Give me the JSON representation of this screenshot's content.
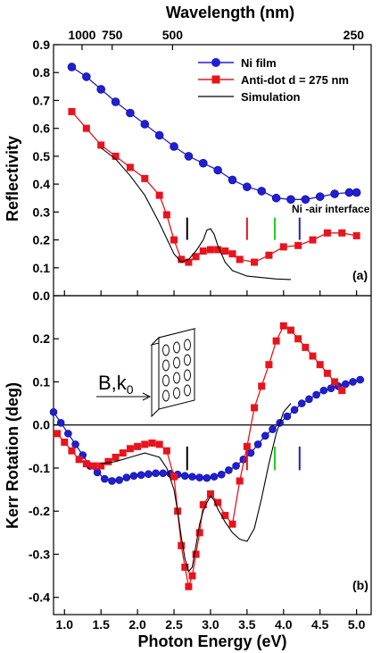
{
  "figure": {
    "top_axis_label": "Wavelength (nm)",
    "top_ticks": [
      {
        "label": "1000",
        "energy": 1.24
      },
      {
        "label": "750",
        "energy": 1.653
      },
      {
        "label": "500",
        "energy": 2.48
      },
      {
        "label": "250",
        "energy": 4.96
      }
    ],
    "x_label": "Photon Energy (eV)",
    "x_ticks": [
      1.0,
      1.5,
      2.0,
      2.5,
      3.0,
      3.5,
      4.0,
      4.5,
      5.0
    ],
    "x_tick_labels": [
      "1.0",
      "1.5",
      "2.0",
      "2.5",
      "3.0",
      "3.5",
      "4.0",
      "4.5",
      "5.0"
    ],
    "xlim": [
      0.85,
      5.2
    ]
  },
  "panels": {
    "a": {
      "ylabel": "Reflectivity",
      "ylim": [
        0.0,
        0.9
      ],
      "y_ticks": [
        "0.0",
        "0.1",
        "0.2",
        "0.3",
        "0.4",
        "0.5",
        "0.6",
        "0.7",
        "0.8",
        "0.9"
      ],
      "panel_label": "(a)",
      "annotation": "Ni -air interface",
      "legend": [
        {
          "label": "Ni film",
          "marker": "circle",
          "color": "#1f1fd6"
        },
        {
          "label": "Anti-dot d = 275 nm",
          "marker": "square",
          "color": "#e8141c"
        },
        {
          "label": "Simulation",
          "marker": "none",
          "color": "#000000"
        }
      ]
    },
    "b": {
      "ylabel": "Kerr Rotation (deg)",
      "ylim": [
        -0.44,
        0.3
      ],
      "y_ticks": [
        "-0.4",
        "-0.3",
        "-0.2",
        "-0.1",
        "0.0",
        "0.1",
        "0.2"
      ],
      "panel_label": "(b)",
      "inset_label": "B,k",
      "inset_subscript": "0"
    }
  },
  "markers": [
    {
      "energy": 2.68,
      "color": "#000000"
    },
    {
      "energy": 3.5,
      "color": "#e8141c"
    },
    {
      "energy": 3.88,
      "color": "#22cc22"
    },
    {
      "energy": 4.22,
      "color": "#1f1fd6"
    }
  ],
  "chart_data": [
    {
      "type": "line",
      "title": "",
      "xlabel": "Photon Energy (eV)",
      "ylabel": "Reflectivity",
      "xlim": [
        0.85,
        5.2
      ],
      "ylim": [
        0.0,
        0.9
      ],
      "series": [
        {
          "name": "Ni film",
          "marker": "circle",
          "color": "#1f1fd6",
          "x": [
            1.1,
            1.3,
            1.5,
            1.7,
            1.9,
            2.1,
            2.3,
            2.5,
            2.7,
            2.9,
            3.1,
            3.3,
            3.5,
            3.7,
            3.9,
            4.1,
            4.3,
            4.5,
            4.7,
            4.9,
            5.0
          ],
          "y": [
            0.82,
            0.785,
            0.74,
            0.695,
            0.655,
            0.615,
            0.575,
            0.535,
            0.5,
            0.475,
            0.45,
            0.415,
            0.39,
            0.375,
            0.35,
            0.345,
            0.345,
            0.355,
            0.365,
            0.37,
            0.37
          ]
        },
        {
          "name": "Anti-dot d = 275 nm",
          "marker": "square",
          "color": "#e8141c",
          "x": [
            1.1,
            1.3,
            1.5,
            1.7,
            1.9,
            2.1,
            2.3,
            2.4,
            2.5,
            2.6,
            2.7,
            2.8,
            2.9,
            3.0,
            3.1,
            3.2,
            3.3,
            3.4,
            3.6,
            3.8,
            4.0,
            4.2,
            4.4,
            4.6,
            4.8,
            5.0
          ],
          "y": [
            0.66,
            0.6,
            0.54,
            0.5,
            0.46,
            0.42,
            0.36,
            0.29,
            0.2,
            0.13,
            0.12,
            0.14,
            0.16,
            0.165,
            0.165,
            0.16,
            0.15,
            0.13,
            0.12,
            0.145,
            0.175,
            0.18,
            0.2,
            0.225,
            0.225,
            0.215
          ]
        },
        {
          "name": "Simulation",
          "marker": "none",
          "color": "#000000",
          "x": [
            1.5,
            1.7,
            1.9,
            2.1,
            2.3,
            2.5,
            2.6,
            2.7,
            2.8,
            2.9,
            2.95,
            3.0,
            3.05,
            3.1,
            3.2,
            3.3,
            3.5,
            3.7,
            3.9,
            4.1
          ],
          "y": [
            0.53,
            0.49,
            0.43,
            0.36,
            0.26,
            0.15,
            0.12,
            0.13,
            0.16,
            0.2,
            0.235,
            0.24,
            0.22,
            0.18,
            0.12,
            0.09,
            0.07,
            0.065,
            0.06,
            0.058
          ]
        }
      ]
    },
    {
      "type": "line",
      "title": "",
      "xlabel": "Photon Energy (eV)",
      "ylabel": "Kerr Rotation (deg)",
      "xlim": [
        0.85,
        5.2
      ],
      "ylim": [
        -0.44,
        0.3
      ],
      "series": [
        {
          "name": "Ni film",
          "marker": "circle",
          "color": "#1f1fd6",
          "x": [
            0.85,
            0.95,
            1.05,
            1.15,
            1.25,
            1.35,
            1.45,
            1.55,
            1.65,
            1.75,
            1.85,
            1.95,
            2.05,
            2.15,
            2.25,
            2.35,
            2.45,
            2.55,
            2.65,
            2.75,
            2.85,
            2.95,
            3.05,
            3.15,
            3.25,
            3.35,
            3.45,
            3.55,
            3.65,
            3.75,
            3.85,
            3.95,
            4.05,
            4.15,
            4.25,
            4.35,
            4.45,
            4.55,
            4.65,
            4.75,
            4.85,
            4.95,
            5.05
          ],
          "y": [
            0.03,
            0.005,
            -0.02,
            -0.045,
            -0.07,
            -0.095,
            -0.11,
            -0.125,
            -0.13,
            -0.128,
            -0.122,
            -0.118,
            -0.116,
            -0.114,
            -0.112,
            -0.112,
            -0.113,
            -0.115,
            -0.118,
            -0.12,
            -0.122,
            -0.123,
            -0.12,
            -0.115,
            -0.105,
            -0.095,
            -0.08,
            -0.065,
            -0.045,
            -0.025,
            -0.01,
            0.005,
            0.02,
            0.035,
            0.05,
            0.06,
            0.07,
            0.08,
            0.085,
            0.09,
            0.095,
            0.1,
            0.105
          ]
        },
        {
          "name": "Anti-dot d = 275 nm",
          "marker": "square",
          "color": "#e8141c",
          "x": [
            0.9,
            1.0,
            1.1,
            1.2,
            1.3,
            1.4,
            1.5,
            1.6,
            1.7,
            1.8,
            1.9,
            2.0,
            2.1,
            2.2,
            2.3,
            2.4,
            2.5,
            2.55,
            2.6,
            2.65,
            2.7,
            2.75,
            2.8,
            2.85,
            2.9,
            3.0,
            3.1,
            3.2,
            3.3,
            3.4,
            3.5,
            3.6,
            3.7,
            3.8,
            3.9,
            4.0,
            4.1,
            4.2,
            4.3,
            4.4,
            4.5,
            4.6,
            4.7,
            4.8
          ],
          "y": [
            -0.02,
            -0.04,
            -0.06,
            -0.08,
            -0.09,
            -0.095,
            -0.095,
            -0.085,
            -0.075,
            -0.065,
            -0.055,
            -0.05,
            -0.045,
            -0.042,
            -0.045,
            -0.06,
            -0.12,
            -0.2,
            -0.28,
            -0.33,
            -0.375,
            -0.35,
            -0.3,
            -0.25,
            -0.185,
            -0.16,
            -0.18,
            -0.21,
            -0.23,
            -0.13,
            -0.05,
            0.04,
            0.09,
            0.14,
            0.195,
            0.23,
            0.22,
            0.2,
            0.18,
            0.16,
            0.14,
            0.12,
            0.1,
            0.08
          ]
        },
        {
          "name": "Simulation",
          "marker": "none",
          "color": "#000000",
          "x": [
            1.5,
            1.7,
            1.9,
            2.1,
            2.3,
            2.4,
            2.5,
            2.55,
            2.6,
            2.65,
            2.7,
            2.75,
            2.8,
            2.85,
            2.9,
            2.95,
            3.0,
            3.05,
            3.1,
            3.2,
            3.3,
            3.4,
            3.5,
            3.6,
            3.7,
            3.8,
            3.9,
            4.0,
            4.1
          ],
          "y": [
            -0.09,
            -0.085,
            -0.075,
            -0.065,
            -0.075,
            -0.1,
            -0.15,
            -0.2,
            -0.26,
            -0.31,
            -0.34,
            -0.33,
            -0.28,
            -0.23,
            -0.2,
            -0.18,
            -0.165,
            -0.175,
            -0.195,
            -0.225,
            -0.25,
            -0.265,
            -0.27,
            -0.24,
            -0.17,
            -0.09,
            -0.02,
            0.03,
            0.05
          ]
        }
      ]
    }
  ]
}
